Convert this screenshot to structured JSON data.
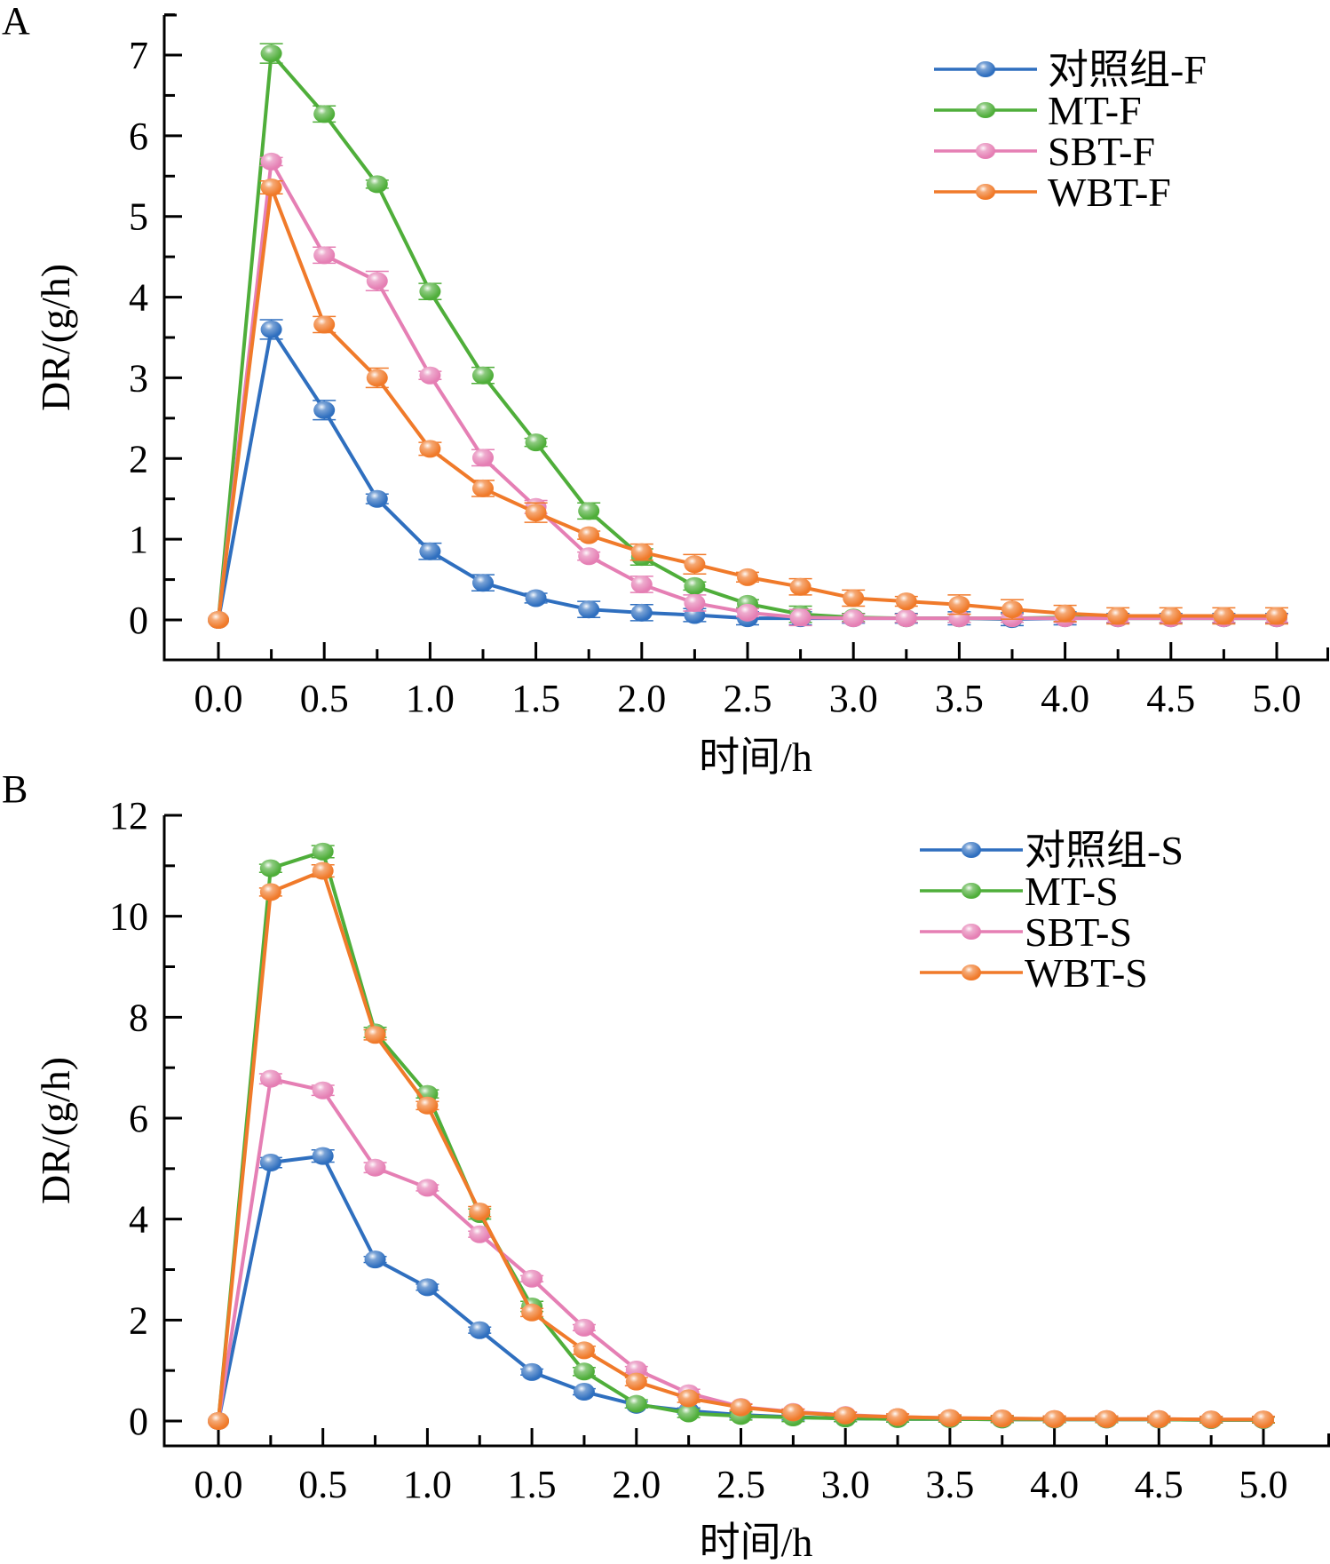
{
  "chart_data": [
    {
      "panel": "A",
      "type": "line",
      "title": "",
      "xlabel": "时间/h",
      "ylabel": "DR/(g/h)",
      "xlim": [
        -0.25,
        5.25
      ],
      "ylim": [
        -0.5,
        7.5
      ],
      "xticks": [
        "0.0",
        "0.5",
        "1.0",
        "1.5",
        "2.0",
        "2.5",
        "3.0",
        "3.5",
        "4.0",
        "4.5",
        "5.0"
      ],
      "yticks": [
        "0",
        "1",
        "2",
        "3",
        "4",
        "5",
        "6",
        "7"
      ],
      "legend_position": "top-right",
      "x": [
        0,
        0.25,
        0.5,
        0.75,
        1.0,
        1.25,
        1.5,
        1.75,
        2.0,
        2.25,
        2.5,
        2.75,
        3.0,
        3.25,
        3.5,
        3.75,
        4.0,
        4.25,
        4.5,
        4.75,
        5.0
      ],
      "series": [
        {
          "name": "对照组-F",
          "color": "#2f6fbf",
          "values": [
            0,
            3.6,
            2.6,
            1.5,
            0.85,
            0.46,
            0.27,
            0.13,
            0.09,
            0.06,
            0.02,
            0.02,
            0.02,
            0.02,
            0.02,
            0.01,
            0.02,
            0.02,
            0.02,
            0.02,
            0.02
          ],
          "errors": [
            0,
            0.12,
            0.12,
            0.06,
            0.1,
            0.1,
            0.06,
            0.1,
            0.1,
            0.08,
            0.08,
            0.08,
            0.06,
            0.06,
            0.08,
            0.08,
            0.08,
            0.06,
            0.06,
            0.06,
            0.06
          ]
        },
        {
          "name": "MT-F",
          "color": "#4fae3a",
          "values": [
            0,
            7.02,
            6.27,
            5.4,
            4.07,
            3.03,
            2.2,
            1.35,
            0.78,
            0.42,
            0.2,
            0.07,
            0.03,
            0.02,
            0.02,
            0.02,
            0.03,
            0.02,
            0.02,
            0.02,
            0.02
          ],
          "errors": [
            0,
            0.12,
            0.1,
            0.05,
            0.1,
            0.1,
            0.05,
            0.1,
            0.1,
            0.05,
            0.05,
            0.1,
            0.05,
            0.05,
            0.05,
            0.05,
            0.05,
            0.05,
            0.05,
            0.05,
            0.05
          ]
        },
        {
          "name": "SBT-F",
          "color": "#e57fb4",
          "values": [
            0,
            5.68,
            4.52,
            4.2,
            3.03,
            2.01,
            1.4,
            0.79,
            0.44,
            0.21,
            0.09,
            0.03,
            0.02,
            0.02,
            0.02,
            0.02,
            0.02,
            0.02,
            0.02,
            0.02,
            0.02
          ],
          "errors": [
            0,
            0.05,
            0.1,
            0.12,
            0.05,
            0.1,
            0.08,
            0.05,
            0.1,
            0.1,
            0.05,
            0.1,
            0.05,
            0.05,
            0.05,
            0.05,
            0.05,
            0.05,
            0.05,
            0.05,
            0.05
          ]
        },
        {
          "name": "WBT-F",
          "color": "#f07a2a",
          "values": [
            0,
            5.36,
            3.66,
            3.0,
            2.12,
            1.63,
            1.33,
            1.05,
            0.84,
            0.69,
            0.53,
            0.41,
            0.27,
            0.23,
            0.19,
            0.13,
            0.08,
            0.05,
            0.05,
            0.05,
            0.05
          ],
          "errors": [
            0,
            0.08,
            0.1,
            0.12,
            0.08,
            0.1,
            0.12,
            0.05,
            0.1,
            0.12,
            0.06,
            0.1,
            0.1,
            0.06,
            0.12,
            0.12,
            0.1,
            0.1,
            0.1,
            0.1,
            0.1
          ]
        }
      ]
    },
    {
      "panel": "B",
      "type": "line",
      "title": "",
      "xlabel": "时间/h",
      "ylabel": "DR/(g/h)",
      "xlim": [
        -0.25,
        5.25
      ],
      "ylim": [
        -0.5,
        12
      ],
      "xticks": [
        "0.0",
        "0.5",
        "1.0",
        "1.5",
        "2.0",
        "2.5",
        "3.0",
        "3.5",
        "4.0",
        "4.5",
        "5.0"
      ],
      "yticks": [
        "0",
        "2",
        "4",
        "6",
        "8",
        "10",
        "12"
      ],
      "legend_position": "top-right",
      "x": [
        0,
        0.25,
        0.5,
        0.75,
        1.0,
        1.25,
        1.5,
        1.75,
        2.0,
        2.25,
        2.5,
        2.75,
        3.0,
        3.25,
        3.5,
        3.75,
        4.0,
        4.25,
        4.5,
        4.75,
        5.0
      ],
      "series": [
        {
          "name": "对照组-S",
          "color": "#2f6fbf",
          "values": [
            0,
            5.12,
            5.25,
            3.2,
            2.65,
            1.8,
            0.97,
            0.58,
            0.32,
            0.2,
            0.12,
            0.08,
            0.05,
            0.04,
            0.04,
            0.03,
            0.03,
            0.03,
            0.03,
            0.02,
            0.02
          ],
          "errors": [
            0,
            0.1,
            0.12,
            0.06,
            0.06,
            0.06,
            0.06,
            0.06,
            0.06,
            0.06,
            0.06,
            0.06,
            0.06,
            0.06,
            0.06,
            0.06,
            0.06,
            0.06,
            0.06,
            0.06,
            0.06
          ]
        },
        {
          "name": "MT-S",
          "color": "#4fae3a",
          "values": [
            0,
            10.95,
            11.28,
            7.7,
            6.48,
            4.1,
            2.27,
            0.98,
            0.34,
            0.15,
            0.1,
            0.07,
            0.05,
            0.04,
            0.04,
            0.03,
            0.03,
            0.03,
            0.03,
            0.02,
            0.02
          ],
          "errors": [
            0,
            0.08,
            0.12,
            0.1,
            0.08,
            0.1,
            0.1,
            0.08,
            0.08,
            0.08,
            0.08,
            0.08,
            0.06,
            0.06,
            0.06,
            0.06,
            0.06,
            0.06,
            0.06,
            0.06,
            0.06
          ]
        },
        {
          "name": "SBT-S",
          "color": "#e57fb4",
          "values": [
            0,
            6.78,
            6.55,
            5.02,
            4.62,
            3.7,
            2.82,
            1.85,
            1.02,
            0.55,
            0.28,
            0.18,
            0.12,
            0.08,
            0.06,
            0.05,
            0.04,
            0.04,
            0.04,
            0.03,
            0.03
          ],
          "errors": [
            0,
            0.1,
            0.1,
            0.1,
            0.06,
            0.06,
            0.06,
            0.06,
            0.06,
            0.08,
            0.06,
            0.06,
            0.06,
            0.06,
            0.06,
            0.06,
            0.06,
            0.06,
            0.06,
            0.06,
            0.06
          ]
        },
        {
          "name": "WBT-S",
          "color": "#f07a2a",
          "values": [
            0,
            10.48,
            10.9,
            7.65,
            6.25,
            4.15,
            2.15,
            1.4,
            0.78,
            0.45,
            0.27,
            0.17,
            0.11,
            0.08,
            0.06,
            0.05,
            0.04,
            0.04,
            0.04,
            0.03,
            0.03
          ],
          "errors": [
            0,
            0.08,
            0.12,
            0.1,
            0.08,
            0.1,
            0.08,
            0.08,
            0.08,
            0.08,
            0.06,
            0.06,
            0.06,
            0.06,
            0.06,
            0.06,
            0.06,
            0.06,
            0.06,
            0.06,
            0.06
          ]
        }
      ]
    }
  ]
}
